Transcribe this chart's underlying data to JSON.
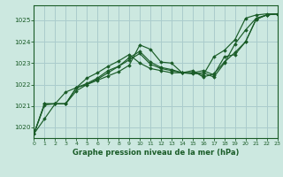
{
  "background_color": "#cce8e0",
  "grid_color": "#aacccc",
  "line_color": "#1a5c28",
  "title": "Graphe pression niveau de la mer (hPa)",
  "xlim": [
    0,
    23
  ],
  "ylim": [
    1019.5,
    1025.7
  ],
  "yticks": [
    1020,
    1021,
    1022,
    1023,
    1024,
    1025
  ],
  "xticks": [
    0,
    1,
    2,
    3,
    4,
    5,
    6,
    7,
    8,
    9,
    10,
    11,
    12,
    13,
    14,
    15,
    16,
    17,
    18,
    19,
    20,
    21,
    22,
    23
  ],
  "series": [
    [
      1019.7,
      1020.4,
      1021.1,
      1021.1,
      1021.7,
      1022.0,
      1022.2,
      1022.4,
      1022.6,
      1022.9,
      1023.85,
      1023.65,
      1023.05,
      1023.0,
      1022.55,
      1022.5,
      1022.55,
      1022.35,
      1023.0,
      1023.9,
      1024.55,
      1025.1,
      1025.25,
      1025.3
    ],
    [
      1019.7,
      1021.1,
      1021.1,
      1021.1,
      1021.85,
      1022.0,
      1022.25,
      1022.55,
      1022.85,
      1023.25,
      1023.55,
      1023.05,
      1022.8,
      1022.7,
      1022.55,
      1022.55,
      1022.65,
      1022.45,
      1023.3,
      1023.4,
      1024.0,
      1025.05,
      1025.25,
      1025.3
    ],
    [
      1019.7,
      1021.1,
      1021.1,
      1021.1,
      1021.85,
      1022.3,
      1022.55,
      1022.85,
      1023.1,
      1023.4,
      1023.0,
      1022.75,
      1022.65,
      1022.55,
      1022.55,
      1022.55,
      1022.45,
      1023.3,
      1023.6,
      1024.1,
      1025.1,
      1025.25,
      1025.3,
      1025.3
    ],
    [
      1019.7,
      1021.05,
      1021.1,
      1021.65,
      1021.85,
      1022.05,
      1022.3,
      1022.65,
      1022.85,
      1023.15,
      1023.45,
      1022.95,
      1022.75,
      1022.65,
      1022.55,
      1022.65,
      1022.35,
      1022.5,
      1023.05,
      1023.5,
      1024.0,
      1025.05,
      1025.25,
      1025.3
    ]
  ]
}
